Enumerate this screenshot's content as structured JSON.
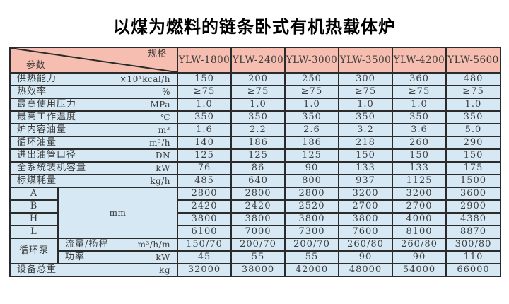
{
  "title": "以煤为燃料的链条卧式有机热载体炉",
  "colors": {
    "header_bg": "#f6beb0",
    "body_bg": "#d5e8f4",
    "border": "#2b2b2b",
    "text": "#3c3c3c"
  },
  "table": {
    "corner": {
      "top_right": "规格",
      "bottom_left": "参数"
    },
    "columns": [
      "YLW-1800",
      "YLW-2400",
      "YLW-3000",
      "YLW-3500",
      "YLW-4200",
      "YLW-5600"
    ],
    "rows": [
      {
        "label": "供热能力",
        "unit": "×10⁴kcal/h",
        "span": 2,
        "values": [
          "150",
          "200",
          "250",
          "300",
          "360",
          "480"
        ]
      },
      {
        "label": "热效率",
        "unit": "%",
        "span": 2,
        "values": [
          "≥75",
          "≥75",
          "≥75",
          "≥75",
          "≥75",
          "≥75"
        ]
      },
      {
        "label": "最高使用压力",
        "unit": "MPa",
        "span": 2,
        "values": [
          "1.0",
          "1.0",
          "1.0",
          "1.0",
          "1.0",
          "1.0"
        ]
      },
      {
        "label": "最高工作温度",
        "unit": "℃",
        "span": 2,
        "values": [
          "350",
          "350",
          "350",
          "350",
          "350",
          "350"
        ]
      },
      {
        "label": "炉内容油量",
        "unit": "m³",
        "span": 2,
        "values": [
          "1.6",
          "2.2",
          "2.6",
          "3.2",
          "3.6",
          "5.0"
        ]
      },
      {
        "label": "循环油量",
        "unit": "m³/h",
        "span": 2,
        "values": [
          "140",
          "186",
          "186",
          "218",
          "260",
          "290"
        ]
      },
      {
        "label": "进出油管口径",
        "unit": "DN",
        "span": 2,
        "values": [
          "125",
          "125",
          "125",
          "150",
          "150",
          "150"
        ]
      },
      {
        "label": "全系统装机容量",
        "unit": "kW",
        "span": 2,
        "values": [
          "76",
          "86",
          "90",
          "133",
          "133",
          "175"
        ]
      },
      {
        "label": "标煤耗量",
        "unit": "kg/h",
        "span": 2,
        "values": [
          "485",
          "640",
          "800",
          "937",
          "1125",
          "1500"
        ]
      },
      {
        "sub_label": "A",
        "merged_unit": {
          "text": "mm",
          "rowspan": 4
        },
        "values": [
          "2800",
          "2800",
          "2800",
          "3200",
          "3200",
          "3600"
        ]
      },
      {
        "sub_label": "B",
        "values": [
          "2420",
          "2420",
          "2520",
          "2700",
          "2700",
          "2900"
        ]
      },
      {
        "sub_label": "H",
        "values": [
          "3800",
          "3800",
          "3800",
          "3800",
          "4000",
          "4380"
        ]
      },
      {
        "sub_label": "L",
        "values": [
          "6100",
          "7000",
          "7300",
          "7600",
          "8100",
          "8870"
        ]
      },
      {
        "group_label": {
          "text": "循环泵",
          "rowspan": 2
        },
        "label": "流量/扬程",
        "unit": "m³/h/m",
        "values": [
          "150/70",
          "200/70",
          "200/70",
          "260/80",
          "260/80",
          "300/80"
        ]
      },
      {
        "label": "功率",
        "unit": "kW",
        "values": [
          "45",
          "55",
          "55",
          "90",
          "90",
          "110"
        ]
      },
      {
        "label": "设备总重",
        "unit": "kg",
        "span": 2,
        "values": [
          "32000",
          "38000",
          "42000",
          "48000",
          "54000",
          "66000"
        ]
      }
    ]
  }
}
